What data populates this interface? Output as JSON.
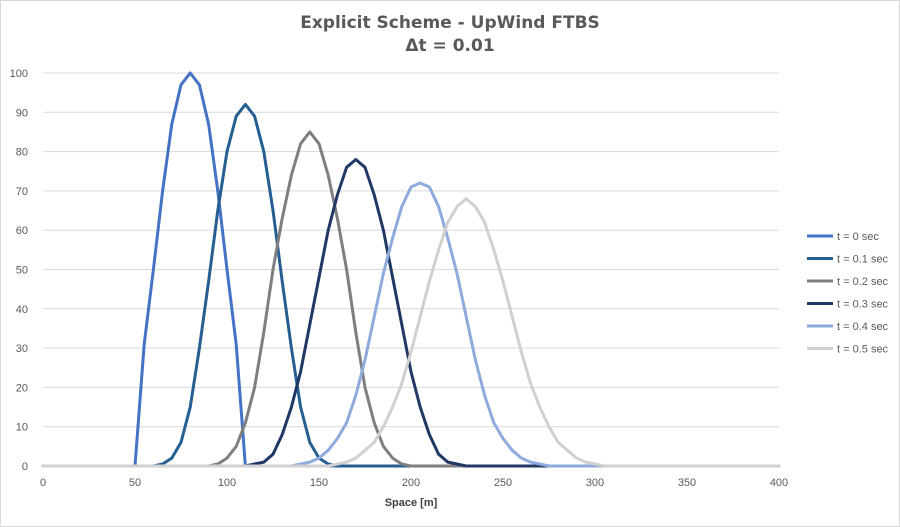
{
  "chart_data": {
    "type": "line",
    "title": "Explicit Scheme - UpWind FTBS",
    "subtitle": "Δt = 0.01",
    "xlabel": "Space [m]",
    "ylabel": "",
    "xlim": [
      0,
      400
    ],
    "ylim": [
      0,
      100
    ],
    "xticks": [
      "0",
      "50",
      "100",
      "150",
      "200",
      "250",
      "300",
      "350",
      "400"
    ],
    "yticks": [
      "0",
      "10",
      "20",
      "30",
      "40",
      "50",
      "60",
      "70",
      "80",
      "90",
      "100"
    ],
    "grid": "horizontal",
    "legend_position": "right",
    "x": [
      0,
      5,
      10,
      15,
      20,
      25,
      30,
      35,
      40,
      45,
      50,
      55,
      60,
      65,
      70,
      75,
      80,
      85,
      90,
      95,
      100,
      105,
      110,
      115,
      120,
      125,
      130,
      135,
      140,
      145,
      150,
      155,
      160,
      165,
      170,
      175,
      180,
      185,
      190,
      195,
      200,
      205,
      210,
      215,
      220,
      225,
      230,
      235,
      240,
      245,
      250,
      255,
      260,
      265,
      270,
      275,
      280,
      285,
      290,
      295,
      300,
      305,
      310,
      315,
      320,
      325,
      330,
      335,
      340,
      345,
      350,
      355,
      360,
      365,
      370,
      375,
      380,
      385,
      390,
      395,
      400
    ],
    "series": [
      {
        "name": "t = 0 sec",
        "color": "#4472c4",
        "values": [
          0,
          0,
          0,
          0,
          0,
          0,
          0,
          0,
          0,
          0,
          0,
          31,
          50,
          70,
          87,
          97,
          100,
          97,
          87,
          70,
          50,
          31,
          0,
          0,
          0,
          0,
          0,
          0,
          0,
          0,
          0,
          0,
          0,
          0,
          0,
          0,
          0,
          0,
          0,
          0,
          0,
          0,
          0,
          0,
          0,
          0,
          0,
          0,
          0,
          0,
          0,
          0,
          0,
          0,
          0,
          0,
          0,
          0,
          0,
          0,
          0,
          0,
          0,
          0,
          0,
          0,
          0,
          0,
          0,
          0,
          0,
          0,
          0,
          0,
          0,
          0,
          0,
          0,
          0,
          0,
          0
        ]
      },
      {
        "name": "t = 0.1 sec",
        "color": "#255e91",
        "values": [
          0,
          0,
          0,
          0,
          0,
          0,
          0,
          0,
          0,
          0,
          0,
          0,
          0,
          0.5,
          2,
          6,
          15,
          30,
          47,
          65,
          80,
          89,
          92,
          89,
          80,
          65,
          47,
          30,
          15,
          6,
          2,
          0.5,
          0,
          0,
          0,
          0,
          0,
          0,
          0,
          0,
          0,
          0,
          0,
          0,
          0,
          0,
          0,
          0,
          0,
          0,
          0,
          0,
          0,
          0,
          0,
          0,
          0,
          0,
          0,
          0,
          0,
          0,
          0,
          0,
          0,
          0,
          0,
          0,
          0,
          0,
          0,
          0,
          0,
          0,
          0,
          0,
          0,
          0,
          0,
          0,
          0
        ]
      },
      {
        "name": "t = 0.2 sec",
        "color": "#7f7f7f",
        "values": [
          0,
          0,
          0,
          0,
          0,
          0,
          0,
          0,
          0,
          0,
          0,
          0,
          0,
          0,
          0,
          0,
          0,
          0,
          0,
          0.5,
          2,
          5,
          11,
          20,
          34,
          50,
          63,
          74,
          82,
          85,
          82,
          74,
          63,
          50,
          34,
          20,
          11,
          5,
          2,
          0.5,
          0,
          0,
          0,
          0,
          0,
          0,
          0,
          0,
          0,
          0,
          0,
          0,
          0,
          0,
          0,
          0,
          0,
          0,
          0,
          0,
          0,
          0,
          0,
          0,
          0,
          0,
          0,
          0,
          0,
          0,
          0,
          0,
          0,
          0,
          0,
          0,
          0,
          0,
          0,
          0,
          0
        ]
      },
      {
        "name": "t = 0.3 sec",
        "color": "#203864",
        "values": [
          0,
          0,
          0,
          0,
          0,
          0,
          0,
          0,
          0,
          0,
          0,
          0,
          0,
          0,
          0,
          0,
          0,
          0,
          0,
          0,
          0,
          0,
          0,
          0.5,
          1,
          3,
          8,
          15,
          24,
          36,
          48,
          60,
          69,
          76,
          78,
          76,
          69,
          60,
          48,
          36,
          24,
          15,
          8,
          3,
          1,
          0.5,
          0,
          0,
          0,
          0,
          0,
          0,
          0,
          0,
          0,
          0,
          0,
          0,
          0,
          0,
          0,
          0,
          0,
          0,
          0,
          0,
          0,
          0,
          0,
          0,
          0,
          0,
          0,
          0,
          0,
          0,
          0,
          0,
          0,
          0,
          0
        ]
      },
      {
        "name": "t = 0.4 sec",
        "color": "#8faadc",
        "values": [
          0,
          0,
          0,
          0,
          0,
          0,
          0,
          0,
          0,
          0,
          0,
          0,
          0,
          0,
          0,
          0,
          0,
          0,
          0,
          0,
          0,
          0,
          0,
          0,
          0,
          0,
          0,
          0,
          0.5,
          1,
          2,
          4,
          7,
          11,
          18,
          27,
          38,
          49,
          58,
          66,
          71,
          72,
          71,
          66,
          58,
          49,
          38,
          27,
          18,
          11,
          7,
          4,
          2,
          1,
          0.5,
          0,
          0,
          0,
          0,
          0,
          0,
          0,
          0,
          0,
          0,
          0,
          0,
          0,
          0,
          0,
          0,
          0,
          0,
          0,
          0,
          0,
          0,
          0,
          0,
          0,
          0
        ]
      },
      {
        "name": "t = 0.5 sec",
        "color": "#d0d0d0",
        "values": [
          0,
          0,
          0,
          0,
          0,
          0,
          0,
          0,
          0,
          0,
          0,
          0,
          0,
          0,
          0,
          0,
          0,
          0,
          0,
          0,
          0,
          0,
          0,
          0,
          0,
          0,
          0,
          0,
          0,
          0,
          0,
          0,
          0.5,
          1,
          2,
          4,
          6,
          10,
          15,
          21,
          29,
          38,
          47,
          55,
          62,
          66,
          68,
          66,
          62,
          55,
          47,
          38,
          29,
          21,
          15,
          10,
          6,
          4,
          2,
          1,
          0.5,
          0,
          0,
          0,
          0,
          0,
          0,
          0,
          0,
          0,
          0,
          0,
          0,
          0,
          0,
          0,
          0,
          0,
          0,
          0,
          0
        ]
      }
    ]
  }
}
